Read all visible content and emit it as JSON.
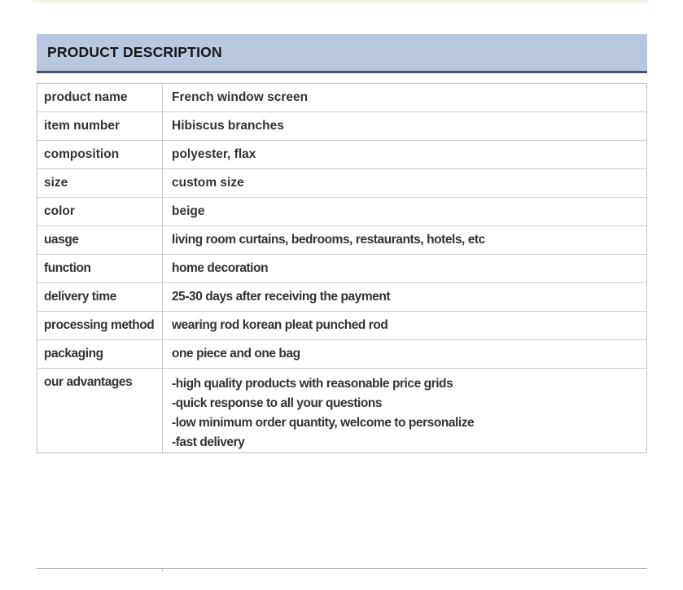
{
  "header": {
    "title": "PRODUCT DESCRIPTION",
    "bar_color": "#b8c7e0",
    "underline_color": "#44546a"
  },
  "colors": {
    "top_strip": "#f6f3e9",
    "table_border": "#bdbdbd",
    "text": "#333333"
  },
  "table": {
    "rows": [
      {
        "label": "product name",
        "value": "French window screen"
      },
      {
        "label": "item number",
        "value": "Hibiscus branches"
      },
      {
        "label": "composition",
        "value": "polyester, flax"
      },
      {
        "label": "size",
        "value": "custom size"
      },
      {
        "label": "color",
        "value": "beige"
      },
      {
        "label": "uasge",
        "value": "living room curtains, bedrooms, restaurants, hotels, etc"
      },
      {
        "label": "function",
        "value": "home decoration"
      },
      {
        "label": "delivery time",
        "value": "25-30 days after receiving the payment"
      },
      {
        "label": "processing method",
        "value": "wearing rod korean pleat punched rod"
      },
      {
        "label": "packaging",
        "value": "one piece and one bag"
      },
      {
        "label": "our advantages",
        "value_lines": [
          "-high quality products with reasonable price grids",
          "-quick response to all your questions",
          "-low minimum order quantity, welcome to personalize",
          "-fast delivery"
        ]
      }
    ]
  }
}
